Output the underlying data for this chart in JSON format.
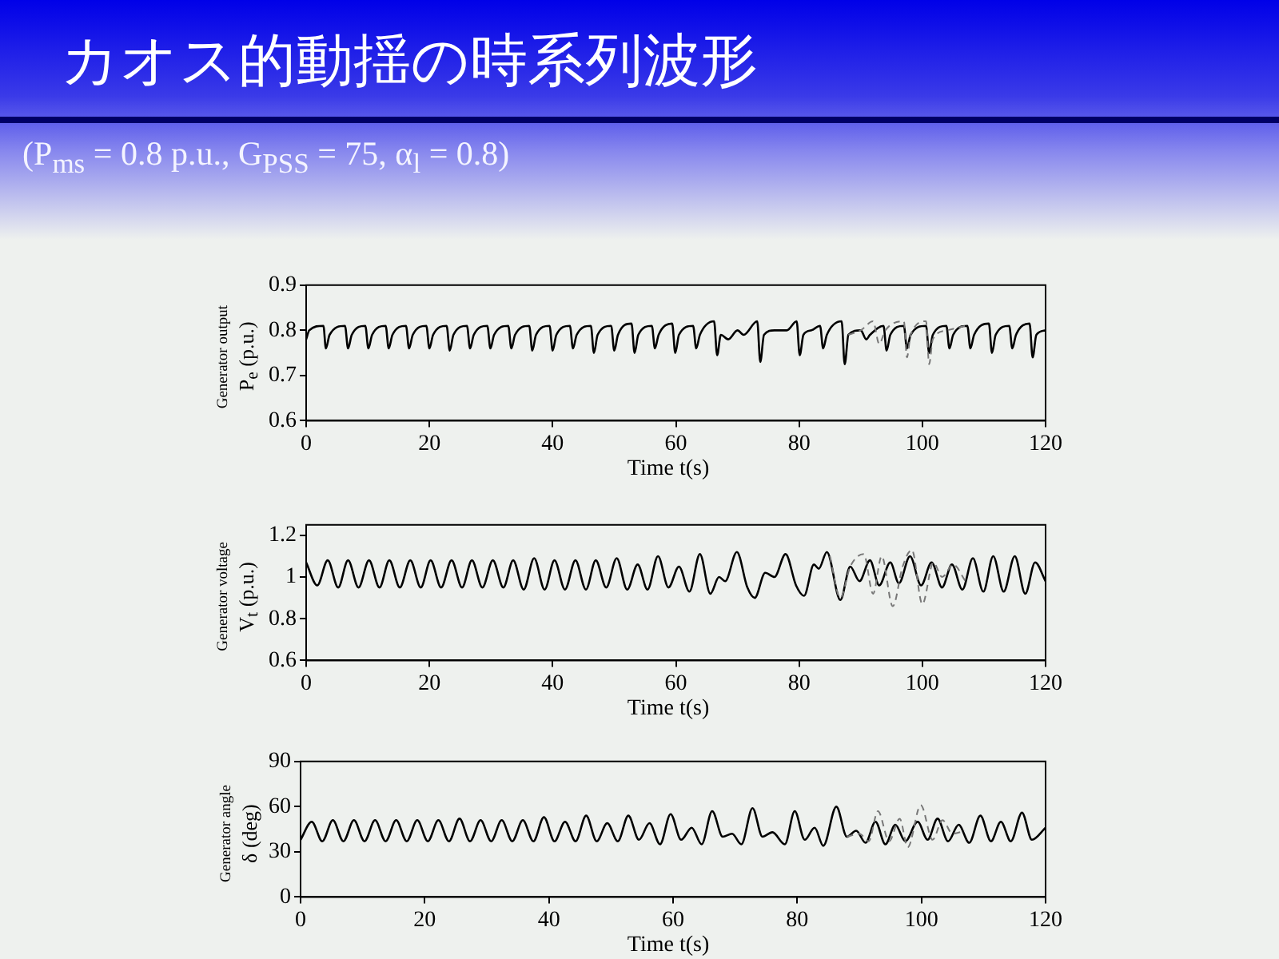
{
  "chart_data": [
    {
      "type": "line",
      "title": "カオス的動揺の時系列波形",
      "subtitle": "(P$_{ms}$ = 0.8 p.u., G$_{PSS}$ = 75, α$_{l}$ = 0.8)",
      "xlabel": "Time  t(s)",
      "ylabel": "Generator output\nP$_{e}$ (p.u.)",
      "xlim": [
        0,
        120
      ],
      "xticks": [
        0,
        20,
        40,
        60,
        80,
        100,
        120
      ],
      "ylim": [
        0.6,
        0.9
      ],
      "yticks": [
        0.6,
        0.7,
        0.8,
        0.9
      ],
      "legend": false,
      "marker": "none",
      "series": [
        {
          "color": "#000000",
          "line_style": "solid",
          "x": [
            0,
            0.5,
            2.8,
            3.2,
            3.8,
            6.3,
            6.8,
            7.4,
            9.6,
            10.1,
            10.7,
            12.9,
            13.4,
            14.0,
            16.2,
            16.7,
            17.3,
            19.5,
            20.0,
            20.6,
            22.8,
            23.3,
            23.9,
            26.1,
            26.6,
            27.2,
            29.4,
            29.9,
            30.5,
            32.8,
            33.3,
            33.9,
            36.2,
            36.7,
            37.3,
            39.5,
            40.0,
            40.6,
            42.8,
            43.3,
            43.9,
            46.2,
            46.7,
            47.3,
            49.5,
            50.0,
            50.6,
            52.8,
            53.3,
            53.9,
            56.1,
            56.6,
            57.2,
            59.4,
            59.9,
            60.5,
            62.8,
            63.3,
            63.9,
            66.2,
            66.7,
            67.3,
            68.5,
            70,
            71.0,
            73.2,
            73.7,
            74.3,
            76,
            78,
            79.6,
            80.1,
            80.7,
            82,
            83.4,
            83.9,
            84.5,
            86.9,
            87.4,
            88,
            90,
            90.9,
            91.5,
            93.7,
            94.2,
            94.8,
            97.0,
            97.5,
            98.1,
            100.6,
            101.1,
            101.7,
            103.9,
            104.4,
            105,
            107.3,
            107.8,
            108.4,
            110.8,
            111.3,
            111.9,
            114.1,
            114.6,
            115.2,
            117.4,
            117.9,
            118.5,
            120
          ],
          "values": [
            0.78,
            0.8,
            0.81,
            0.76,
            0.79,
            0.81,
            0.76,
            0.79,
            0.81,
            0.76,
            0.79,
            0.81,
            0.76,
            0.79,
            0.81,
            0.76,
            0.79,
            0.81,
            0.76,
            0.79,
            0.81,
            0.755,
            0.79,
            0.81,
            0.76,
            0.79,
            0.81,
            0.76,
            0.79,
            0.81,
            0.76,
            0.79,
            0.81,
            0.755,
            0.79,
            0.81,
            0.755,
            0.79,
            0.81,
            0.76,
            0.79,
            0.81,
            0.75,
            0.79,
            0.81,
            0.755,
            0.79,
            0.815,
            0.75,
            0.79,
            0.81,
            0.76,
            0.79,
            0.815,
            0.75,
            0.79,
            0.81,
            0.76,
            0.79,
            0.82,
            0.745,
            0.79,
            0.78,
            0.8,
            0.79,
            0.82,
            0.73,
            0.79,
            0.8,
            0.8,
            0.82,
            0.745,
            0.79,
            0.8,
            0.81,
            0.76,
            0.79,
            0.82,
            0.725,
            0.79,
            0.8,
            0.78,
            0.79,
            0.81,
            0.755,
            0.79,
            0.81,
            0.76,
            0.79,
            0.81,
            0.75,
            0.79,
            0.81,
            0.76,
            0.79,
            0.81,
            0.76,
            0.79,
            0.815,
            0.75,
            0.79,
            0.81,
            0.76,
            0.79,
            0.815,
            0.74,
            0.79,
            0.8
          ]
        },
        {
          "color": "#777777",
          "line_style": "dashed",
          "x": [
            88,
            90,
            92,
            93.0,
            94,
            97,
            97.5,
            98.1,
            100.6,
            101.1,
            101.7,
            104,
            107
          ],
          "values": [
            0.79,
            0.8,
            0.82,
            0.77,
            0.8,
            0.82,
            0.74,
            0.79,
            0.82,
            0.725,
            0.78,
            0.8,
            0.81
          ]
        }
      ]
    },
    {
      "type": "line",
      "xlabel": "Time  t(s)",
      "ylabel": "Generator voltage\nV$_{t}$ (p.u.)",
      "xlim": [
        0,
        120
      ],
      "xticks": [
        0,
        20,
        40,
        60,
        80,
        100,
        120
      ],
      "ylim": [
        0.6,
        1.25
      ],
      "yticks": [
        0.6,
        0.8,
        1,
        1.2
      ],
      "legend": false,
      "marker": "none",
      "series": [
        {
          "color": "#000000",
          "line_style": "solid",
          "x": [
            0,
            1.8,
            3.5,
            5.2,
            6.8,
            8.5,
            10.2,
            11.9,
            13.5,
            15.2,
            16.9,
            18.6,
            20.2,
            21.9,
            23.6,
            25.3,
            26.9,
            28.6,
            30.3,
            32.0,
            33.6,
            35.3,
            37.0,
            38.7,
            40.3,
            42.0,
            43.7,
            45.4,
            47.0,
            48.7,
            50.4,
            52.1,
            53.8,
            55.4,
            57.1,
            58.8,
            60.5,
            62.2,
            63.9,
            65.6,
            67.0,
            68,
            69.9,
            71.6,
            72.8,
            74.5,
            76,
            77.8,
            79.5,
            80.8,
            82.4,
            83.2,
            84.5,
            86.7,
            88.3,
            89.8,
            91.5,
            93,
            94.8,
            96.2,
            98.0,
            99.8,
            101.5,
            103.2,
            104.8,
            106.5,
            108.2,
            109.9,
            111.5,
            113.2,
            115.0,
            116.7,
            118.3,
            120
          ],
          "values": [
            1.07,
            0.96,
            1.08,
            0.95,
            1.08,
            0.95,
            1.08,
            0.95,
            1.08,
            0.95,
            1.08,
            0.95,
            1.08,
            0.95,
            1.08,
            0.95,
            1.08,
            0.95,
            1.08,
            0.95,
            1.08,
            0.94,
            1.09,
            0.94,
            1.08,
            0.94,
            1.08,
            0.94,
            1.08,
            0.95,
            1.09,
            0.94,
            1.06,
            0.94,
            1.1,
            0.95,
            1.05,
            0.93,
            1.11,
            0.92,
            1.0,
            0.98,
            1.12,
            0.95,
            0.9,
            1.02,
            1.0,
            1.11,
            0.96,
            0.91,
            1.06,
            1.04,
            1.12,
            0.89,
            1.05,
            0.98,
            1.08,
            0.96,
            1.07,
            0.97,
            1.1,
            0.96,
            1.07,
            0.95,
            1.06,
            0.94,
            1.09,
            0.93,
            1.1,
            0.93,
            1.1,
            0.92,
            1.07,
            0.98
          ]
        },
        {
          "color": "#777777",
          "line_style": "dashed",
          "x": [
            85,
            86.7,
            88.3,
            90.5,
            92.0,
            93.4,
            95.2,
            96.8,
            98.3,
            100.0,
            101.8,
            103.2,
            105,
            107
          ],
          "values": [
            1.1,
            0.9,
            1.05,
            1.11,
            0.92,
            1.1,
            0.86,
            1.05,
            1.13,
            0.87,
            1.07,
            1.0,
            1.06,
            0.98
          ]
        }
      ]
    },
    {
      "type": "line",
      "xlabel": "Time  t(s)",
      "ylabel": "Generator angle\nδ (deg)",
      "xlim": [
        0,
        120
      ],
      "xticks": [
        0,
        20,
        40,
        60,
        80,
        100,
        120
      ],
      "ylim": [
        0,
        90
      ],
      "yticks": [
        0,
        30,
        60,
        90
      ],
      "legend": false,
      "marker": "none",
      "series": [
        {
          "color": "#000000",
          "line_style": "solid",
          "x": [
            0,
            1.8,
            3.5,
            5.2,
            6.9,
            8.6,
            10.3,
            12.0,
            13.7,
            15.4,
            17.1,
            18.8,
            20.5,
            22.2,
            23.9,
            25.6,
            27.3,
            29.0,
            30.7,
            32.4,
            34.1,
            35.8,
            37.5,
            39.2,
            40.9,
            42.6,
            44.3,
            46.0,
            47.7,
            49.4,
            51.1,
            52.8,
            54.5,
            56.2,
            57.9,
            59.6,
            61.3,
            63,
            64.6,
            66.3,
            68,
            69.5,
            71,
            72.8,
            74.4,
            76,
            78,
            79.6,
            81.2,
            82.8,
            84.2,
            86.3,
            88,
            89.5,
            91,
            92.6,
            94.2,
            95.8,
            97.4,
            99.4,
            101,
            102.6,
            104.3,
            106,
            107.7,
            109.5,
            111.2,
            112.8,
            114.4,
            116.2,
            117.8,
            120
          ],
          "values": [
            38,
            50,
            37,
            51,
            37,
            51,
            37,
            51,
            37,
            51,
            37,
            51,
            37,
            51,
            37,
            52,
            37,
            51,
            37,
            51,
            37,
            51,
            37,
            53,
            37,
            50,
            37,
            54,
            37,
            49,
            37,
            54,
            38,
            49,
            35,
            55,
            38,
            46,
            35,
            57,
            40,
            42,
            35,
            59,
            40,
            43,
            35,
            57,
            38,
            46,
            34,
            60,
            40,
            44,
            36,
            50,
            35,
            48,
            37,
            50,
            38,
            52,
            37,
            48,
            36,
            54,
            37,
            50,
            37,
            56,
            38,
            46
          ]
        },
        {
          "color": "#777777",
          "line_style": "dashed",
          "x": [
            88,
            90,
            91.5,
            93,
            94.8,
            96.5,
            97.8,
            99.9,
            101.8,
            103.4,
            105,
            107
          ],
          "values": [
            40,
            42,
            37,
            57,
            37,
            52,
            33,
            61,
            38,
            51,
            42,
            44
          ]
        }
      ]
    }
  ]
}
